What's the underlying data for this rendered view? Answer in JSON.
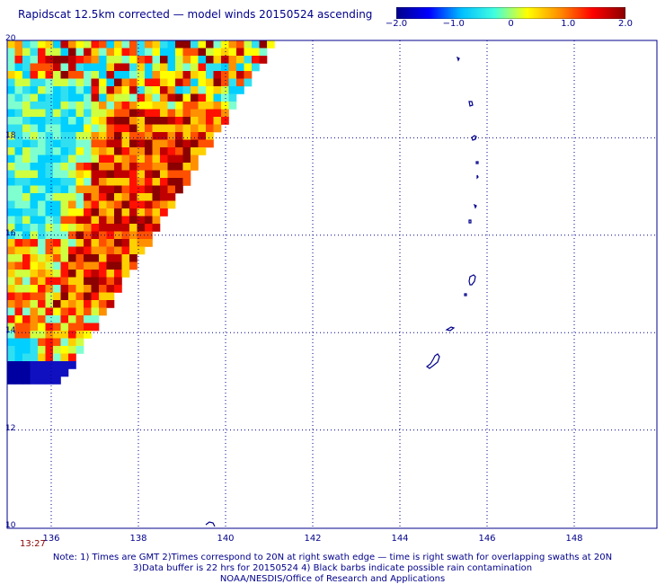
{
  "title": "Rapidscat 12.5km corrected — model winds 20150524 ascending",
  "colorbar": {
    "labels": [
      "−2.0",
      "−1.0",
      "0",
      "1.0",
      "2.0"
    ],
    "values": [
      -2.0,
      -1.0,
      0,
      1.0,
      2.0
    ],
    "colors": [
      "#00008b",
      "#0000ff",
      "#00bfff",
      "#40ffe0",
      "#ffff00",
      "#ff8c00",
      "#ff0000",
      "#8b0000"
    ]
  },
  "map": {
    "lat_labels": [
      "20",
      "18",
      "16",
      "14",
      "12",
      "10"
    ],
    "lat_values": [
      20,
      18,
      16,
      14,
      12,
      10
    ],
    "lon_labels": [
      "136",
      "138",
      "140",
      "142",
      "144",
      "146",
      "148"
    ],
    "lon_values": [
      136,
      138,
      140,
      142,
      144,
      146,
      148
    ],
    "swath_time": "13:27",
    "grid_color": "#00008b",
    "coast_color": "#00008b",
    "swath_palette": [
      "#00cfff",
      "#30e0f0",
      "#7fffd0",
      "#d0ff40",
      "#ffff00",
      "#ffd000",
      "#ff9000",
      "#ff5000",
      "#ff1000",
      "#c00000",
      "#8b0000",
      "#1010c0",
      "#0000a0"
    ]
  },
  "notes": {
    "line1": "Note: 1) Times are GMT 2)Times correspond to 20N at right swath edge — time is right swath for overlapping swaths at 20N",
    "line2": "3)Data buffer is 22 hrs for 20150524 4) Black barbs indicate possible rain contamination",
    "line3": "NOAA/NESDIS/Office of Research and Applications"
  }
}
